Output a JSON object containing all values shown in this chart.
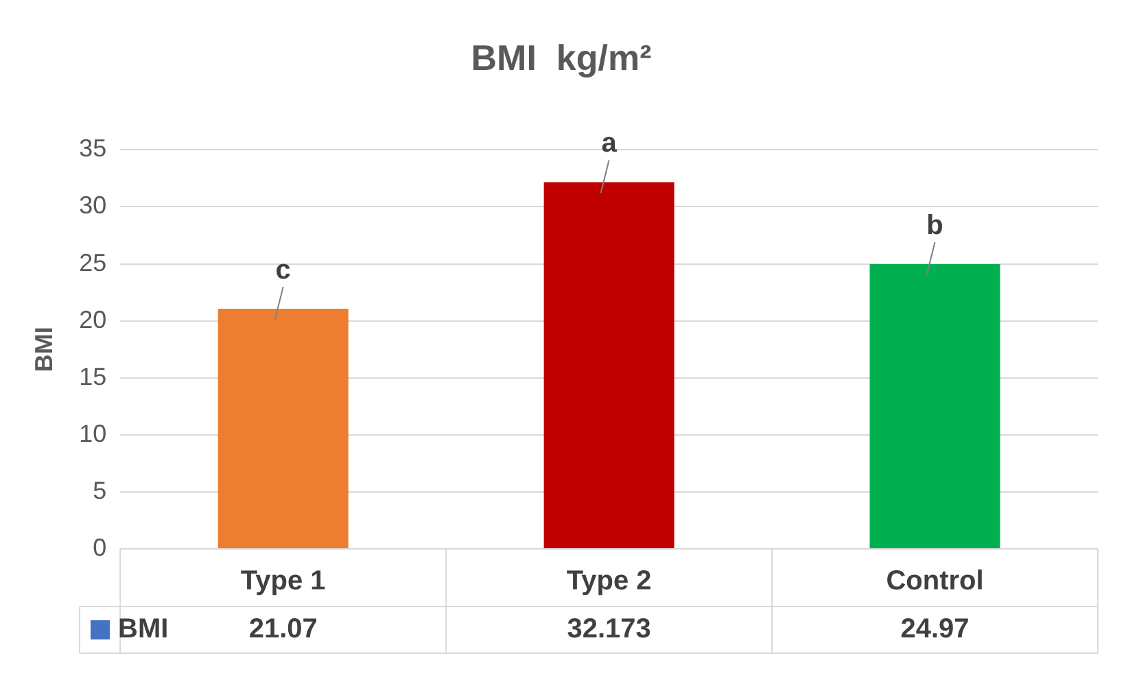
{
  "chart_data": {
    "type": "bar",
    "title": "BMI  kg/m²",
    "ylabel": "BMI",
    "categories": [
      "Type 1",
      "Type 2",
      "Control"
    ],
    "series": [
      {
        "name": "BMI",
        "color": "#4472c4",
        "colors": [
          "#ed7d31",
          "#c00000",
          "#00b050"
        ],
        "values": [
          21.07,
          32.173,
          24.97
        ]
      }
    ],
    "ylim": [
      0,
      35
    ],
    "yticks": [
      0,
      5,
      10,
      15,
      20,
      25,
      30,
      35
    ],
    "grid": "y",
    "legend": "bottom",
    "data_labels": true,
    "annotations": [
      {
        "text": "c",
        "x": "Type 1",
        "y": 21.07
      },
      {
        "text": "a",
        "x": "Type 2",
        "y": 32.173
      },
      {
        "text": "b",
        "x": "Control",
        "y": 24.97
      }
    ]
  }
}
